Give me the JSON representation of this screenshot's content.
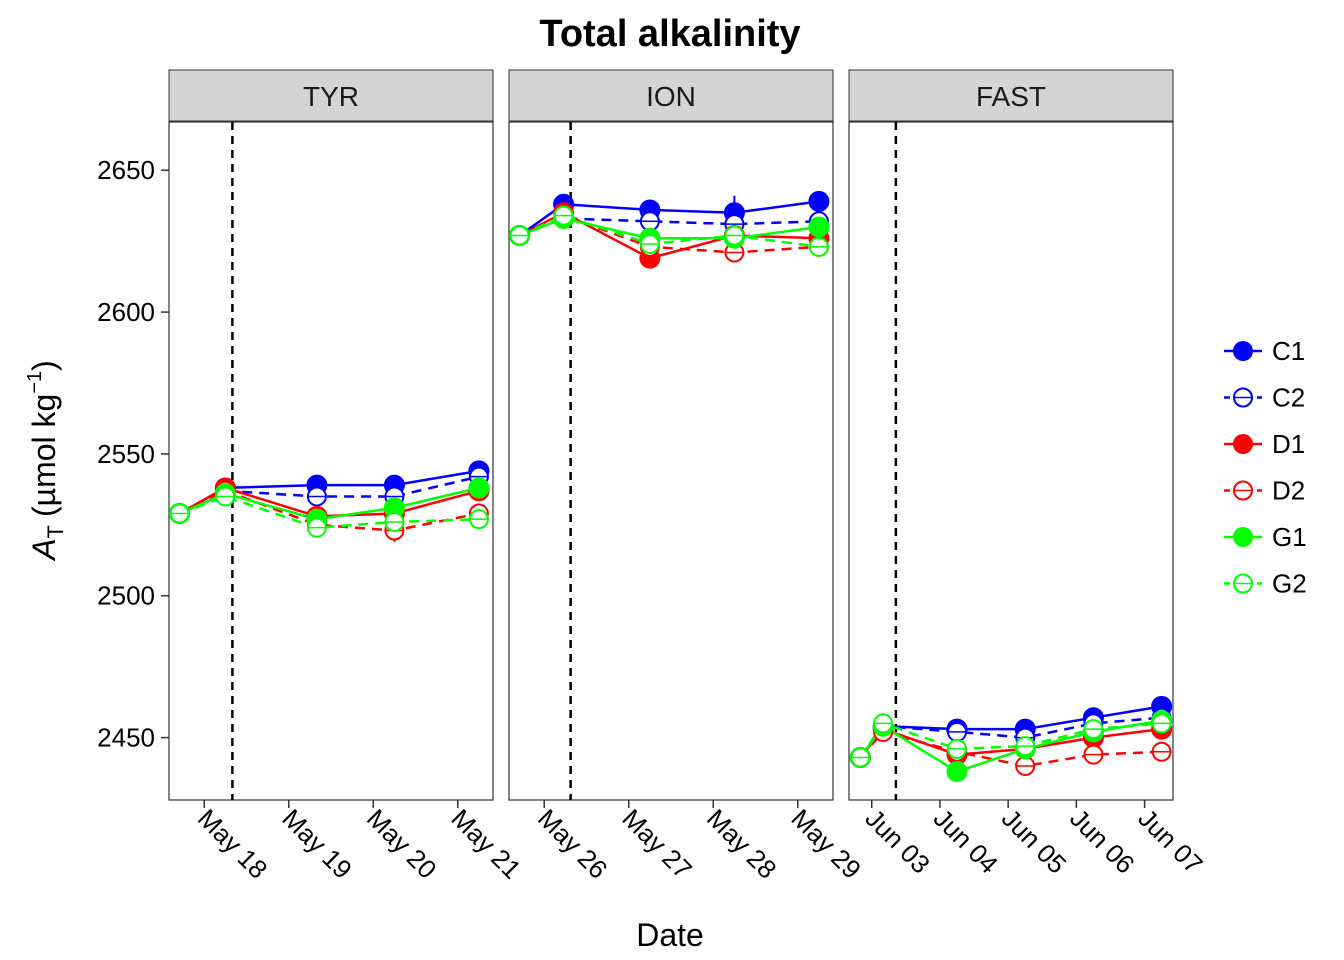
{
  "chart_data": {
    "type": "line",
    "title": "Total alkalinity",
    "xlabel": "Date",
    "ylabel": {
      "main": "A",
      "subscript": "T",
      "unit_open": "(µmol kg",
      "unit_superscript": "−1",
      "unit_close": ")"
    },
    "ylim": [
      2428,
      2667
    ],
    "yticks": [
      2450,
      2500,
      2550,
      2600,
      2650
    ],
    "grid": false,
    "legend_position": "right",
    "series_styles": [
      {
        "name": "C1",
        "color": "#0000ff",
        "filled": true,
        "dashed": false
      },
      {
        "name": "C2",
        "color": "#0000ff",
        "filled": false,
        "dashed": true
      },
      {
        "name": "D1",
        "color": "#ff0000",
        "filled": true,
        "dashed": false
      },
      {
        "name": "D2",
        "color": "#ff0000",
        "filled": false,
        "dashed": true
      },
      {
        "name": "G1",
        "color": "#00ff00",
        "filled": true,
        "dashed": false
      },
      {
        "name": "G2",
        "color": "#00ff00",
        "filled": false,
        "dashed": true
      }
    ],
    "panels": [
      {
        "strip": "TYR",
        "xlim": [
          "2017-05-17 14:00",
          "2017-05-21 10:00"
        ],
        "xticks": [
          {
            "value": "2017-05-18 00:00",
            "label": "May 18"
          },
          {
            "value": "2017-05-19 00:00",
            "label": "May 19"
          },
          {
            "value": "2017-05-20 00:00",
            "label": "May 20"
          },
          {
            "value": "2017-05-21 00:00",
            "label": "May 21"
          }
        ],
        "vline": "2017-05-18 08:00",
        "x": [
          "2017-05-17 17:00",
          "2017-05-18 06:00",
          "2017-05-19 08:00",
          "2017-05-20 06:00",
          "2017-05-21 06:00"
        ],
        "series": [
          {
            "name": "C1",
            "values": [
              2529,
              2538,
              2539,
              2539,
              2544
            ],
            "err": [
              0,
              0,
              0,
              0,
              0
            ]
          },
          {
            "name": "C2",
            "values": [
              2529,
              2537,
              2535,
              2535,
              2542
            ],
            "err": [
              0,
              0,
              2,
              1,
              0
            ]
          },
          {
            "name": "D1",
            "values": [
              2529,
              2538,
              2528,
              2529,
              2537
            ],
            "err": [
              0,
              0,
              0,
              0,
              0
            ]
          },
          {
            "name": "D2",
            "values": [
              2529,
              2537,
              2525,
              2523,
              2529
            ],
            "err": [
              0,
              0,
              0,
              4,
              0
            ]
          },
          {
            "name": "G1",
            "values": [
              2529,
              2536,
              2527,
              2531,
              2538
            ],
            "err": [
              0,
              0,
              0,
              0,
              0
            ]
          },
          {
            "name": "G2",
            "values": [
              2529,
              2535,
              2524,
              2526,
              2527
            ],
            "err": [
              0,
              0,
              0,
              0,
              0
            ]
          }
        ]
      },
      {
        "strip": "ION",
        "xlim": [
          "2017-05-25 14:00",
          "2017-05-29 10:00"
        ],
        "xticks": [
          {
            "value": "2017-05-26 00:00",
            "label": "May 26"
          },
          {
            "value": "2017-05-27 00:00",
            "label": "May 27"
          },
          {
            "value": "2017-05-28 00:00",
            "label": "May 28"
          },
          {
            "value": "2017-05-29 00:00",
            "label": "May 29"
          }
        ],
        "vline": "2017-05-26 07:30",
        "x": [
          "2017-05-25 17:00",
          "2017-05-26 05:30",
          "2017-05-27 06:00",
          "2017-05-28 06:00",
          "2017-05-29 06:00"
        ],
        "series": [
          {
            "name": "C1",
            "values": [
              2627,
              2638,
              2636,
              2635,
              2639
            ],
            "err": [
              0,
              0,
              0,
              6,
              0
            ]
          },
          {
            "name": "C2",
            "values": [
              2627,
              2633,
              2632,
              2631,
              2632
            ],
            "err": [
              0,
              0,
              0,
              0,
              0
            ]
          },
          {
            "name": "D1",
            "values": [
              2627,
              2635,
              2619,
              2627,
              2626
            ],
            "err": [
              0,
              0,
              0,
              0,
              0
            ]
          },
          {
            "name": "D2",
            "values": [
              2627,
              2634,
              2623,
              2621,
              2623
            ],
            "err": [
              0,
              0,
              0,
              0,
              0
            ]
          },
          {
            "name": "G1",
            "values": [
              2627,
              2633,
              2626,
              2626,
              2630
            ],
            "err": [
              0,
              0,
              0,
              0,
              0
            ]
          },
          {
            "name": "G2",
            "values": [
              2627,
              2634,
              2624,
              2627,
              2623
            ],
            "err": [
              0,
              0,
              0,
              0,
              0
            ]
          }
        ]
      },
      {
        "strip": "FAST",
        "xlim": [
          "2017-06-02 16:00",
          "2017-06-07 10:00"
        ],
        "xticks": [
          {
            "value": "2017-06-03 00:00",
            "label": "Jun 03"
          },
          {
            "value": "2017-06-04 00:00",
            "label": "Jun 04"
          },
          {
            "value": "2017-06-05 00:00",
            "label": "Jun 05"
          },
          {
            "value": "2017-06-06 00:00",
            "label": "Jun 06"
          },
          {
            "value": "2017-06-07 00:00",
            "label": "Jun 07"
          }
        ],
        "vline": "2017-06-03 08:30",
        "x": [
          "2017-06-02 20:00",
          "2017-06-03 04:00",
          "2017-06-04 06:00",
          "2017-06-05 06:00",
          "2017-06-06 06:00",
          "2017-06-07 06:00"
        ],
        "series": [
          {
            "name": "C1",
            "values": [
              2443,
              2454,
              2453,
              2453,
              2457,
              2461
            ],
            "err": [
              0,
              0,
              0,
              0,
              0,
              0
            ]
          },
          {
            "name": "C2",
            "values": [
              2443,
              2454,
              2452,
              2450,
              2455,
              2457
            ],
            "err": [
              0,
              0,
              0,
              0,
              0,
              0
            ]
          },
          {
            "name": "D1",
            "values": [
              2443,
              2453,
              2444,
              2446,
              2450,
              2453
            ],
            "err": [
              0,
              0,
              0,
              0,
              0,
              0
            ]
          },
          {
            "name": "D2",
            "values": [
              2443,
              2452,
              2445,
              2440,
              2444,
              2445
            ],
            "err": [
              0,
              0,
              0,
              0,
              0,
              0
            ]
          },
          {
            "name": "G1",
            "values": [
              2443,
              2454,
              2438,
              2446,
              2452,
              2456
            ],
            "err": [
              0,
              0,
              0,
              0,
              0,
              0
            ]
          },
          {
            "name": "G2",
            "values": [
              2443,
              2455,
              2446,
              2447,
              2453,
              2455
            ],
            "err": [
              0,
              0,
              0,
              0,
              0,
              0
            ]
          }
        ]
      }
    ]
  }
}
